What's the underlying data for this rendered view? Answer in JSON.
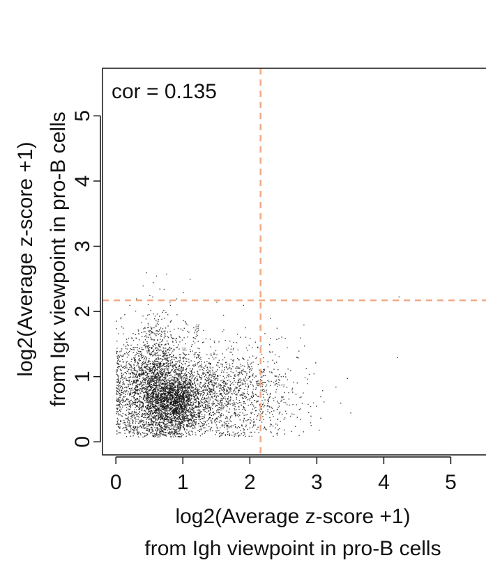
{
  "chart_data": {
    "type": "scatter",
    "title": "",
    "xlabel_lines": [
      "log2(Average z-score +1)",
      "from Igh viewpoint in pro-B cells"
    ],
    "ylabel_lines": [
      "log2(Average z-score +1)",
      "from Igκ viewpoint in pro-B cells"
    ],
    "annotation": "cor = 0.135",
    "xlim": [
      -0.2,
      5.63
    ],
    "ylim": [
      -0.2,
      5.73
    ],
    "x_ticks": [
      0,
      1,
      2,
      3,
      4,
      5
    ],
    "x_tick_labels": [
      "0",
      "1",
      "2",
      "3",
      "4",
      "5"
    ],
    "y_ticks": [
      0,
      1,
      2,
      3,
      4,
      5
    ],
    "y_tick_labels": [
      "0",
      "1",
      "2",
      "3",
      "4",
      "5"
    ],
    "thresholds": {
      "x": 2.16,
      "y": 2.17
    },
    "threshold_color": "#f0a987",
    "point_color": "#111111",
    "grid": false,
    "points": [
      [
        0.45,
        2.6
      ],
      [
        0.6,
        2.55
      ],
      [
        0.75,
        2.58
      ],
      [
        0.55,
        2.45
      ],
      [
        0.4,
        2.4
      ],
      [
        0.65,
        2.35
      ],
      [
        1.1,
        2.5
      ],
      [
        1.0,
        2.3
      ],
      [
        0.9,
        2.2
      ],
      [
        0.3,
        2.2
      ],
      [
        0.5,
        2.25
      ],
      [
        0.2,
        2.1
      ],
      [
        0.8,
        2.15
      ],
      [
        1.5,
        2.15
      ],
      [
        1.9,
        2.1
      ],
      [
        1.6,
        1.95
      ],
      [
        2.3,
        1.9
      ],
      [
        2.4,
        1.75
      ],
      [
        2.75,
        1.6
      ],
      [
        2.8,
        1.8
      ],
      [
        2.55,
        1.45
      ],
      [
        2.6,
        1.1
      ],
      [
        2.7,
        1.3
      ],
      [
        2.5,
        0.85
      ],
      [
        2.85,
        0.9
      ],
      [
        2.95,
        1.05
      ],
      [
        3.05,
        0.7
      ],
      [
        3.1,
        0.62
      ],
      [
        3.45,
        0.98
      ],
      [
        3.35,
        0.6
      ],
      [
        3.5,
        0.45
      ],
      [
        2.9,
        0.55
      ],
      [
        4.22,
        2.23
      ],
      [
        4.2,
        1.3
      ],
      [
        1.2,
        1.8
      ],
      [
        1.22,
        1.75
      ],
      [
        1.18,
        1.72
      ],
      [
        1.21,
        1.7
      ],
      [
        1.2,
        1.66
      ],
      [
        1.19,
        1.62
      ],
      [
        1.22,
        1.78
      ],
      [
        1.17,
        1.68
      ],
      [
        1.2,
        1.74
      ],
      [
        1.21,
        1.64
      ],
      [
        1.16,
        1.6
      ],
      [
        1.13,
        1.5
      ],
      [
        1.1,
        1.42
      ],
      [
        1.08,
        1.35
      ],
      [
        1.05,
        1.28
      ],
      [
        1.12,
        1.47
      ],
      [
        1.15,
        1.55
      ],
      [
        1.23,
        1.8
      ],
      [
        1.19,
        1.77
      ],
      [
        1.2,
        1.69
      ],
      [
        2.0,
        0.3
      ],
      [
        2.05,
        0.25
      ],
      [
        2.1,
        0.2
      ],
      [
        2.2,
        0.35
      ],
      [
        2.3,
        0.28
      ],
      [
        2.45,
        0.32
      ],
      [
        2.6,
        0.4
      ],
      [
        2.75,
        0.35
      ],
      [
        2.9,
        0.3
      ],
      [
        2.2,
        0.6
      ],
      [
        2.3,
        0.75
      ],
      [
        2.4,
        0.5
      ],
      [
        1.4,
        0.2
      ],
      [
        1.6,
        0.15
      ]
    ],
    "cloud": [
      {
        "cx": 0.45,
        "cy": 0.75,
        "sx": 0.32,
        "sy": 0.4,
        "n": 2400
      },
      {
        "cx": 0.85,
        "cy": 0.6,
        "sx": 0.22,
        "sy": 0.22,
        "n": 1500
      },
      {
        "cx": 1.35,
        "cy": 0.75,
        "sx": 0.45,
        "sy": 0.35,
        "n": 1100
      },
      {
        "cx": 1.9,
        "cy": 0.75,
        "sx": 0.45,
        "sy": 0.4,
        "n": 450
      },
      {
        "cx": 0.5,
        "cy": 1.35,
        "sx": 0.3,
        "sy": 0.35,
        "n": 350
      }
    ]
  }
}
